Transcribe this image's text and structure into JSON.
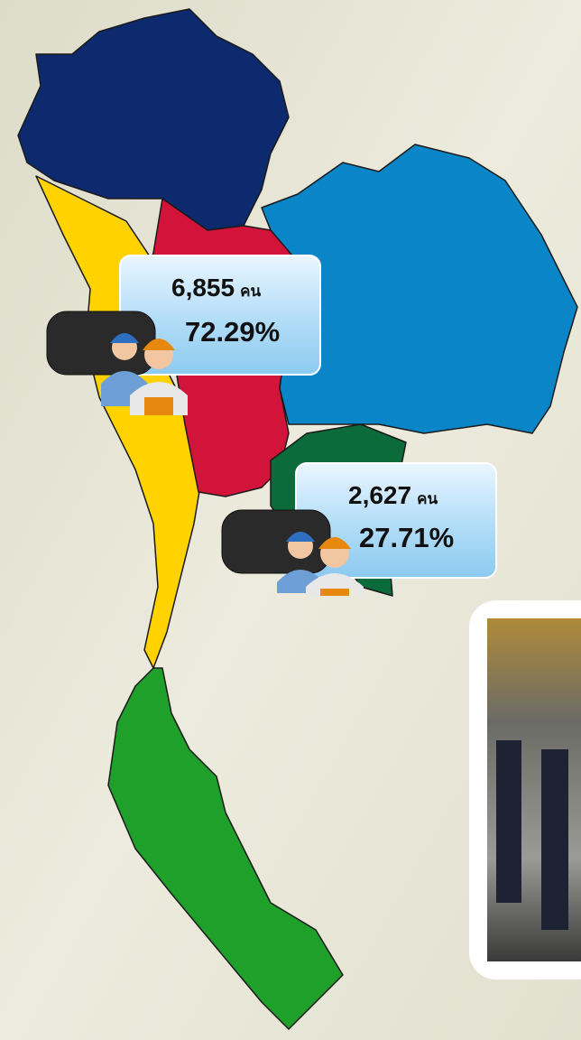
{
  "callouts": [
    {
      "count": "6,855",
      "unit": "คน",
      "percent": "72.29%"
    },
    {
      "count": "2,627",
      "unit": "คน",
      "percent": "27.71%"
    }
  ]
}
